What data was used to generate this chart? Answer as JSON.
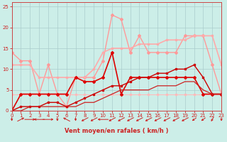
{
  "xlabel": "Vent moyen/en rafales ( km/h )",
  "background_color": "#cceee8",
  "grid_color": "#aacccc",
  "xlim": [
    0,
    23
  ],
  "ylim": [
    0,
    26
  ],
  "yticks": [
    0,
    5,
    10,
    15,
    20,
    25
  ],
  "xticks": [
    0,
    1,
    2,
    3,
    4,
    5,
    6,
    7,
    8,
    9,
    10,
    11,
    12,
    13,
    14,
    15,
    16,
    17,
    18,
    19,
    20,
    21,
    22,
    23
  ],
  "series": [
    {
      "x": [
        0,
        1,
        2,
        3,
        4,
        5,
        6,
        7,
        8,
        9,
        10,
        11,
        12,
        13,
        14,
        15,
        16,
        17,
        18,
        19,
        20,
        21,
        22,
        23
      ],
      "y": [
        14,
        12,
        12,
        4,
        11,
        4,
        1,
        8,
        8,
        8,
        12,
        23,
        22,
        14,
        18,
        14,
        14,
        14,
        14,
        18,
        18,
        18,
        11,
        4
      ],
      "color": "#ff9999",
      "lw": 1.0,
      "marker": "D",
      "ms": 2.0
    },
    {
      "x": [
        0,
        1,
        2,
        3,
        4,
        5,
        6,
        7,
        8,
        9,
        10,
        11,
        12,
        13,
        14,
        15,
        16,
        17,
        18,
        19,
        20,
        21,
        22,
        23
      ],
      "y": [
        11,
        11,
        11,
        8,
        8,
        8,
        8,
        8,
        8,
        10,
        14,
        15,
        15,
        15,
        16,
        16,
        16,
        17,
        17,
        17,
        18,
        18,
        18,
        11
      ],
      "color": "#ffaaaa",
      "lw": 1.2,
      "marker": "s",
      "ms": 1.8
    },
    {
      "x": [
        0,
        1,
        2,
        3,
        4,
        5,
        6,
        7,
        8,
        9,
        10,
        11,
        12,
        13,
        14,
        15,
        16,
        17,
        18,
        19,
        20,
        21,
        22,
        23
      ],
      "y": [
        4,
        4,
        4,
        4,
        4,
        4,
        4,
        4,
        4,
        4,
        4,
        4,
        4,
        4,
        4,
        4,
        4,
        4,
        4,
        4,
        4,
        4,
        4,
        4
      ],
      "color": "#ffbbbb",
      "lw": 0.8,
      "marker": "s",
      "ms": 1.5
    },
    {
      "x": [
        0,
        1,
        2,
        3,
        4,
        5,
        6,
        7,
        8,
        9,
        10,
        11,
        12,
        13,
        14,
        15,
        16,
        17,
        18,
        19,
        20,
        21,
        22,
        23
      ],
      "y": [
        0,
        4,
        4,
        4,
        4,
        4,
        4,
        8,
        7,
        7,
        8,
        14,
        4,
        8,
        8,
        8,
        8,
        8,
        8,
        8,
        8,
        4,
        4,
        4
      ],
      "color": "#dd0000",
      "lw": 1.2,
      "marker": "D",
      "ms": 2.0
    },
    {
      "x": [
        0,
        1,
        2,
        3,
        4,
        5,
        6,
        7,
        8,
        9,
        10,
        11,
        12,
        13,
        14,
        15,
        16,
        17,
        18,
        19,
        20,
        21,
        22,
        23
      ],
      "y": [
        0,
        1,
        1,
        1,
        2,
        2,
        1,
        2,
        3,
        4,
        5,
        6,
        6,
        7,
        8,
        8,
        9,
        9,
        10,
        10,
        11,
        8,
        4,
        4
      ],
      "color": "#cc0000",
      "lw": 1.0,
      "marker": "s",
      "ms": 1.8
    },
    {
      "x": [
        0,
        1,
        2,
        3,
        4,
        5,
        6,
        7,
        8,
        9,
        10,
        11,
        12,
        13,
        14,
        15,
        16,
        17,
        18,
        19,
        20,
        21,
        22,
        23
      ],
      "y": [
        0,
        0,
        1,
        1,
        1,
        1,
        1,
        1,
        2,
        2,
        3,
        4,
        5,
        5,
        5,
        5,
        6,
        6,
        6,
        7,
        7,
        5,
        4,
        4
      ],
      "color": "#cc2222",
      "lw": 0.9,
      "marker": null,
      "ms": 0
    }
  ],
  "arrow_color": "#cc2222",
  "arrows": [
    [
      0,
      0,
      -1
    ],
    [
      1,
      0.7,
      0.7
    ],
    [
      2,
      1,
      0
    ],
    [
      3,
      -1,
      0
    ],
    [
      4,
      1,
      0
    ],
    [
      5,
      0,
      -1
    ],
    [
      6,
      -0.7,
      0.7
    ],
    [
      7,
      0,
      -1
    ],
    [
      8,
      -0.7,
      -0.7
    ],
    [
      9,
      -0.7,
      -0.7
    ],
    [
      10,
      -1,
      0
    ],
    [
      11,
      -0.7,
      -0.7
    ],
    [
      12,
      -0.7,
      -0.7
    ],
    [
      13,
      -0.7,
      -0.7
    ],
    [
      14,
      -0.7,
      -0.7
    ],
    [
      15,
      -0.7,
      -0.7
    ],
    [
      16,
      -0.7,
      -0.7
    ],
    [
      17,
      -0.7,
      -0.7
    ],
    [
      18,
      -0.7,
      -0.7
    ],
    [
      19,
      -0.7,
      -0.7
    ],
    [
      20,
      -0.5,
      -0.7
    ],
    [
      21,
      -0.5,
      -0.7
    ],
    [
      22,
      -0.3,
      -1
    ],
    [
      23,
      0,
      -1
    ]
  ]
}
